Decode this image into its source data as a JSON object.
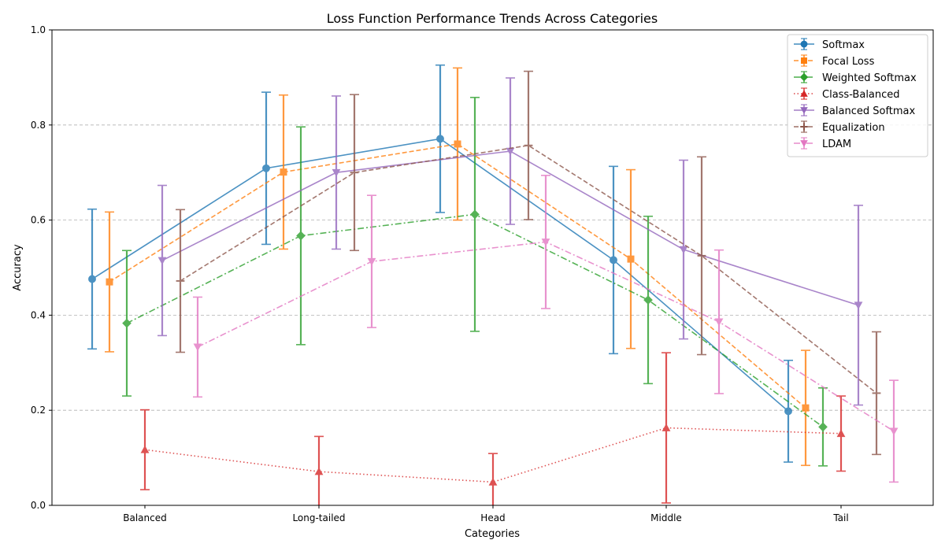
{
  "chart_data": {
    "type": "line",
    "title": "Loss Function Performance Trends Across Categories",
    "xlabel": "Categories",
    "ylabel": "Accuracy",
    "ylim": [
      0,
      1
    ],
    "yticks": [
      "0.0",
      "0.2",
      "0.4",
      "0.6",
      "0.8",
      "1.0"
    ],
    "categories": [
      "Balanced",
      "Long-tailed",
      "Head",
      "Middle",
      "Tail"
    ],
    "grid": "y-dashed",
    "legend_position": "top-right",
    "error_bars": true,
    "series": [
      {
        "name": "Softmax",
        "color": "#1f77b4",
        "marker": "circle",
        "linestyle": "solid",
        "values": [
          0.476,
          0.709,
          0.771,
          0.516,
          0.198
        ],
        "errors": [
          0.147,
          0.16,
          0.155,
          0.197,
          0.107
        ]
      },
      {
        "name": "Focal Loss",
        "color": "#ff7f0e",
        "marker": "square",
        "linestyle": "dashed",
        "values": [
          0.47,
          0.701,
          0.76,
          0.518,
          0.205
        ],
        "errors": [
          0.147,
          0.162,
          0.16,
          0.188,
          0.121
        ]
      },
      {
        "name": "Weighted Softmax",
        "color": "#2ca02c",
        "marker": "diamond",
        "linestyle": "dashdot",
        "values": [
          0.383,
          0.567,
          0.612,
          0.432,
          0.165
        ],
        "errors": [
          0.153,
          0.229,
          0.246,
          0.176,
          0.082
        ]
      },
      {
        "name": "Class-Balanced",
        "color": "#d62728",
        "marker": "triangle-up",
        "linestyle": "dotted",
        "values": [
          0.117,
          0.071,
          0.049,
          0.163,
          0.151
        ],
        "errors": [
          0.084,
          0.074,
          0.06,
          0.158,
          0.079
        ]
      },
      {
        "name": "Balanced Softmax",
        "color": "#9467bd",
        "marker": "triangle-down",
        "linestyle": "solid",
        "values": [
          0.515,
          0.7,
          0.745,
          0.538,
          0.421
        ],
        "errors": [
          0.158,
          0.161,
          0.154,
          0.188,
          0.21
        ]
      },
      {
        "name": "Equalization",
        "color": "#8c564b",
        "marker": "plus",
        "linestyle": "dashed",
        "values": [
          0.472,
          0.7,
          0.757,
          0.525,
          0.236
        ],
        "errors": [
          0.15,
          0.164,
          0.156,
          0.208,
          0.129
        ]
      },
      {
        "name": "LDAM",
        "color": "#e377c2",
        "marker": "triangle-down",
        "linestyle": "dashdot",
        "values": [
          0.333,
          0.513,
          0.554,
          0.386,
          0.156
        ],
        "errors": [
          0.105,
          0.139,
          0.14,
          0.151,
          0.107
        ]
      }
    ]
  }
}
